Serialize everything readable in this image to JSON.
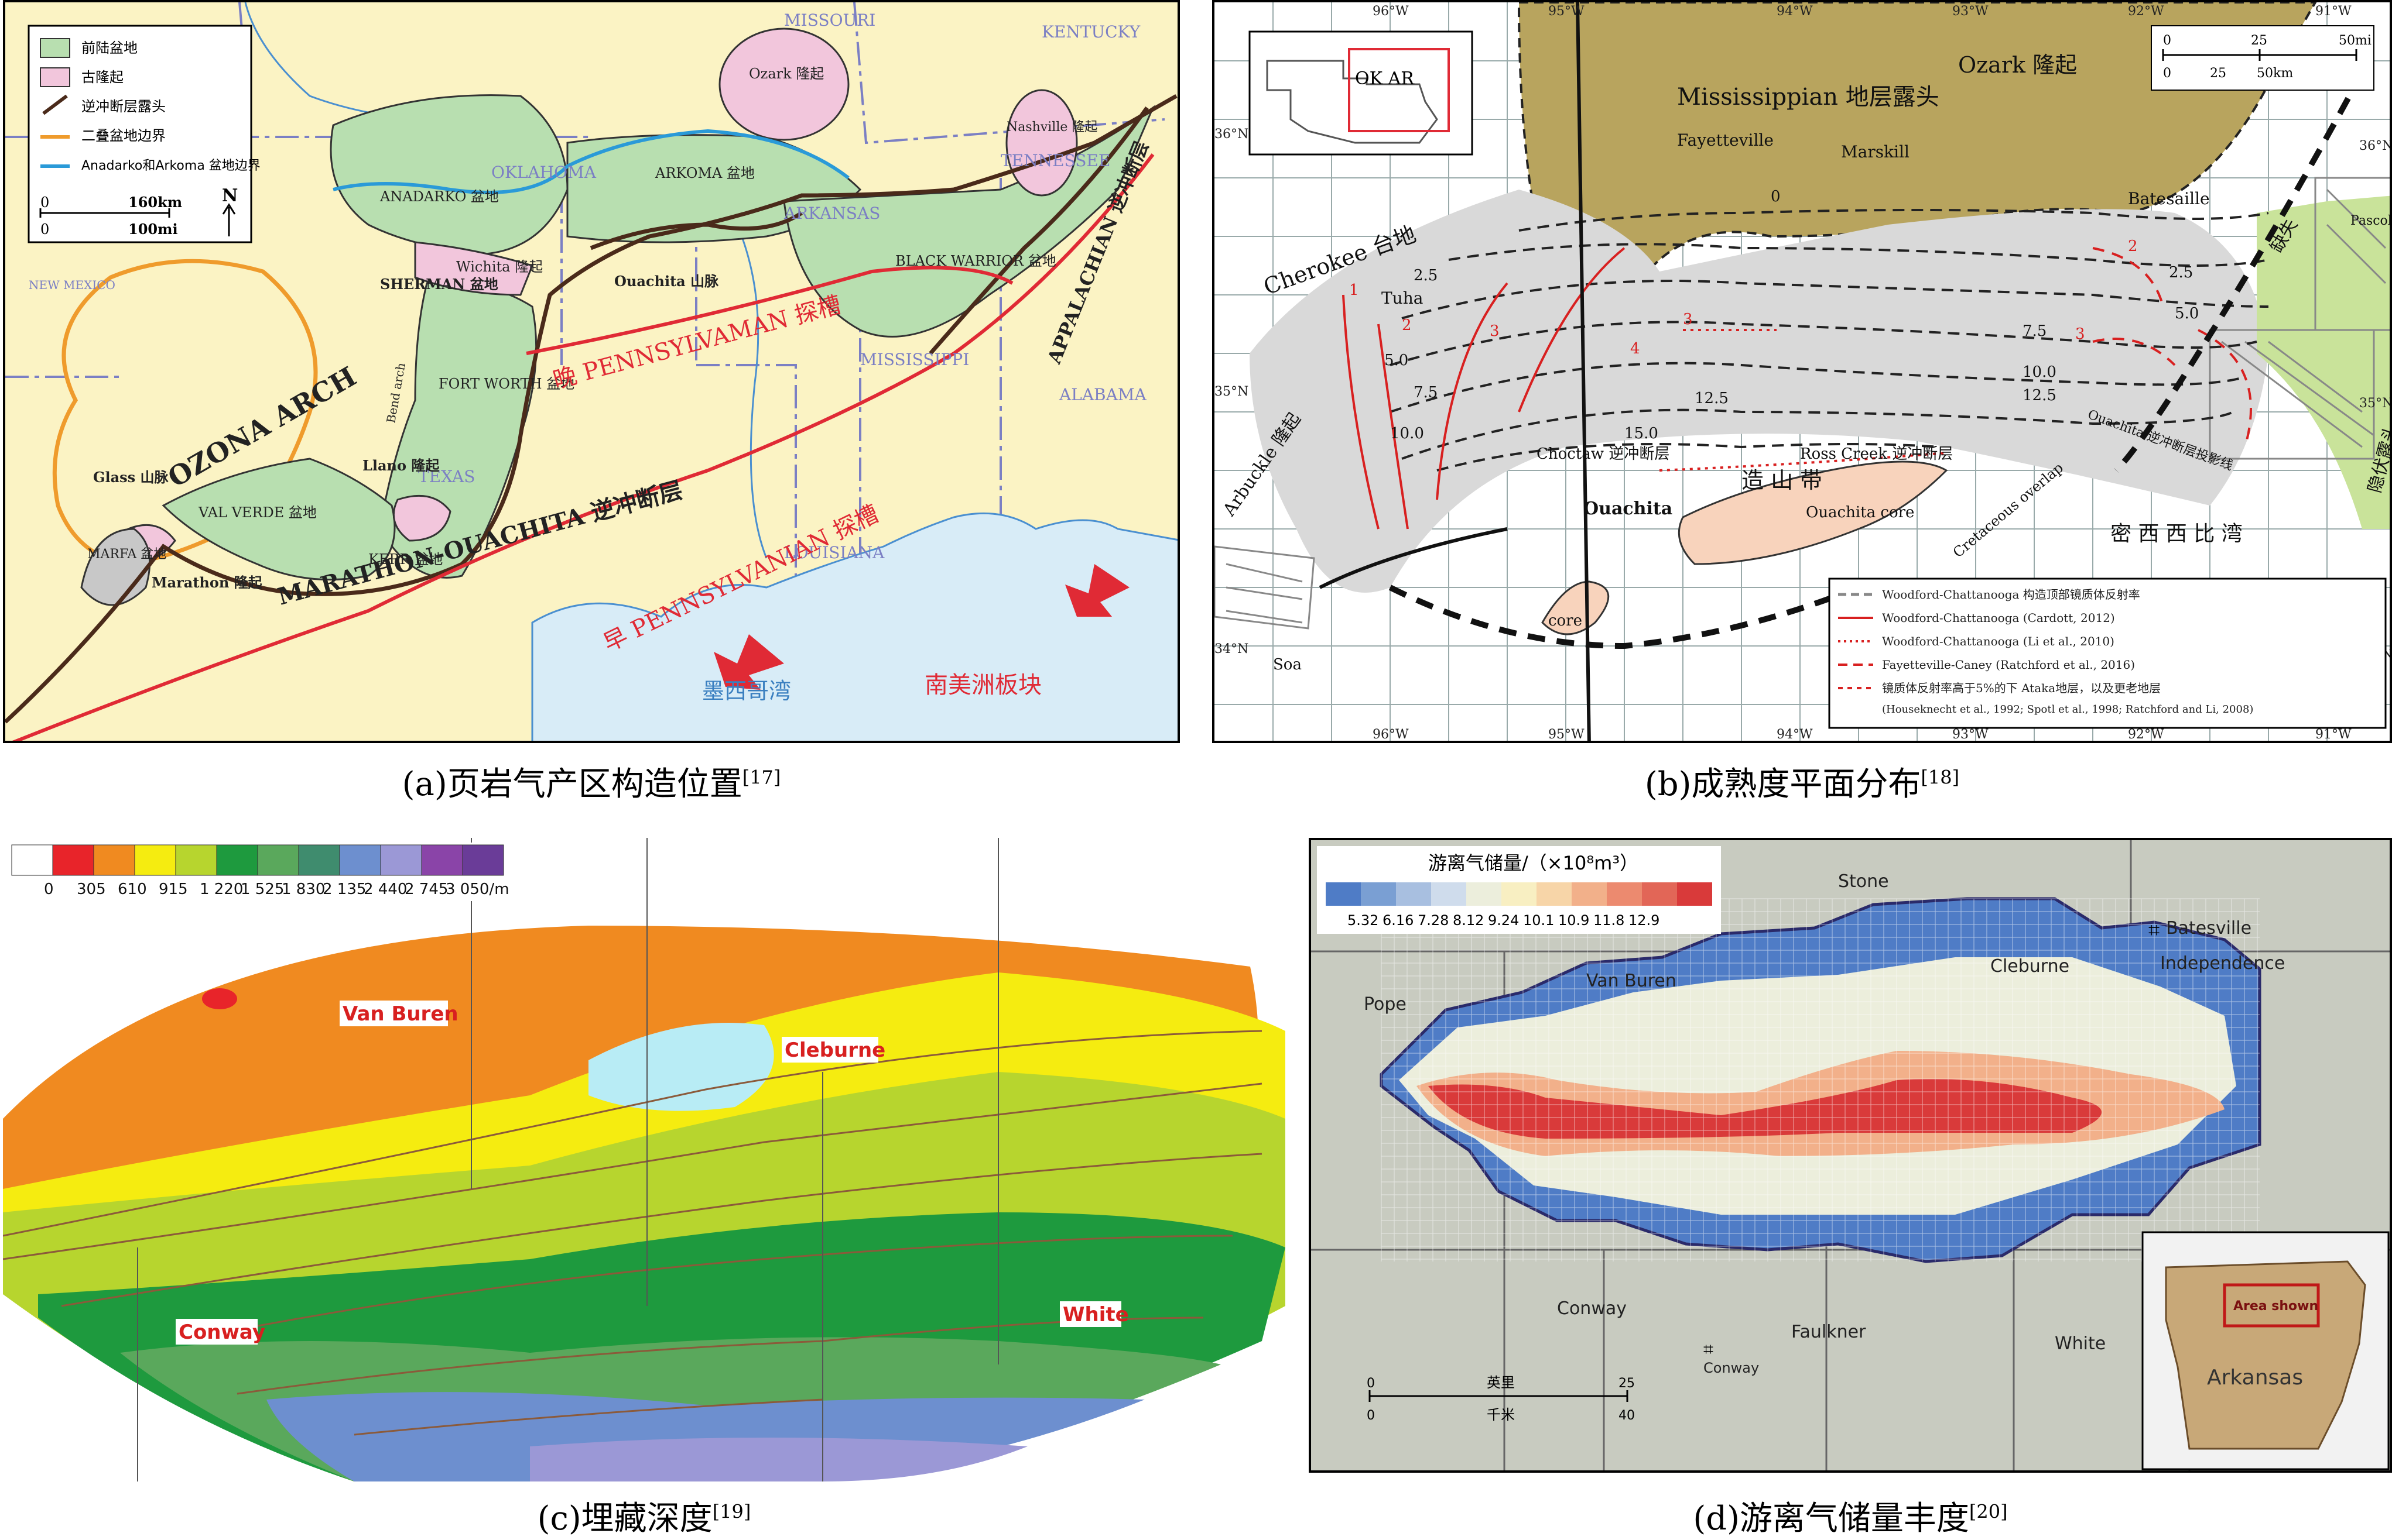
{
  "captions": {
    "a": "(a)页岩气产区构造位置",
    "a_ref": "[17]",
    "b": "(b)成熟度平面分布",
    "b_ref": "[18]",
    "c": "(c)埋藏深度",
    "c_ref": "[19]",
    "d": "(d)游离气储量丰度",
    "d_ref": "[20]"
  },
  "panel_a": {
    "legend": [
      "前陆盆地",
      "古隆起",
      "逆冲断层露头",
      "二叠盆地边界",
      "Anadarko和Arkoma 盆地边界"
    ],
    "scale_km": "160km",
    "scale_mi": "100mi",
    "scale_zero_km": "0",
    "scale_zero_mi": "0",
    "north": "N",
    "states": [
      "MISSOURI",
      "KENTUCKY",
      "OKLAHOMA",
      "ARKANSAS",
      "TENNESSEE",
      "MISSISSIPPI",
      "ALABAMA",
      "TEXAS",
      "LOUISIANA",
      "NEW MEXICO"
    ],
    "labels": {
      "ozark": "Ozark 隆起",
      "nashville": "Nashville 隆起",
      "anadarko": "ANADARKO 盆地",
      "arkoma": "ARKOMA 盆地",
      "black_warrior": "BLACK WARRIOR 盆地",
      "wichita": "Wichita 隆起",
      "sherman": "SHERMAN 盆地",
      "ouachita": "Ouachita 山脉",
      "fort_worth": "FORT WORTH 盆地",
      "bend_arch": "Bend arch",
      "llano": "Llano 隆起",
      "glass": "Glass 山脉",
      "val_verde": "VAL VERDE 盆地",
      "kerr": "KERR 盆地",
      "marfa": "MARFA 盆地",
      "marathon": "Marathon 隆起",
      "ozona": "OZONA ARCH",
      "marathon_ouachita": "MARATHON-OUACHITA 逆冲断层",
      "appalachian": "APPALACHIAN 逆冲断层",
      "late_penn": "晚 PENNSYLVAMAN 探槽",
      "early_penn": "早 PENNSYLVANIAN 探槽",
      "gulf": "墨西哥湾",
      "plate": "南美洲板块"
    }
  },
  "panel_b": {
    "inset": "OK  AR",
    "lon_top": [
      "96°W",
      "95°W",
      "94°W",
      "93°W",
      "92°W",
      "91°W"
    ],
    "lon_bottom": [
      "96°W",
      "95°W",
      "94°W",
      "93°W",
      "92°W",
      "91°W"
    ],
    "lat_left": [
      "36°N",
      "35°N",
      "34°N"
    ],
    "lat_right": [
      "36°N",
      "35°N",
      "34°N"
    ],
    "scale": [
      "0",
      "25",
      "50mi",
      "0",
      "25",
      "50km"
    ],
    "labels": {
      "ozark": "Ozark 隆起",
      "mississippian": "Mississippian 地层露头",
      "fayetteville": "Fayetteville",
      "marskill": "Marskill",
      "batesaille": "Batesaille",
      "cherokee": "Cherokee 台地",
      "tuha": "Tuha",
      "choctaw": "Choctaw 逆冲断层",
      "ross_creek": "Ross Creek 逆冲断层",
      "belt": "造  山  带",
      "ouachita": "Ouachita",
      "ouachita_core": "Ouachita core",
      "core": "core",
      "cretaceous": "Cretaceous overlap",
      "mississippi_bay": "密 西 西 比 湾",
      "ouachita_proj": "Ouachita 逆冲断层投影线",
      "arbuckle": "Arbuckle 隆起",
      "soa": "Soa",
      "gap": "缺失",
      "pascola": "Pascola arch",
      "hidden": "隐伏露头"
    },
    "contours": [
      "0",
      "2.5",
      "5.0",
      "7.5",
      "10.0",
      "12.5",
      "15.0",
      "2.5",
      "5.0",
      "7.5",
      "10.0",
      "12.5"
    ],
    "red_labels": [
      "1",
      "2",
      "3",
      "4",
      "3",
      "2",
      "3"
    ],
    "legend": [
      "Woodford-Chattanooga 构造顶部镜质体反射率",
      "Woodford-Chattanooga (Cardott, 2012)",
      "Woodford-Chattanooga (Li et al., 2010)",
      "Fayetteville-Caney (Ratchford et al., 2016)",
      "镜质体反射率高于5%的下 Ataka地层，以及更老地层",
      "(Houseknecht  et al., 1992; Spotl et al., 1998; Ratchford and  Li, 2008)"
    ]
  },
  "panel_c": {
    "depth_colors": [
      "#ffffff",
      "#e8242a",
      "#f08a20",
      "#f5ec10",
      "#b7d52e",
      "#1e9a3e",
      "#5aa85c",
      "#3f8c6e",
      "#6d8fcf",
      "#9b98d6",
      "#8a44a8",
      "#6a3c98"
    ],
    "depth_ticks": [
      "0",
      "305",
      "610",
      "915",
      "1 220",
      "1 525",
      "1 830",
      "2 135",
      "2 440",
      "2 745",
      "3 050/m"
    ],
    "labels": {
      "van_buren": "Van Buren",
      "cleburne": "Cleburne",
      "conway": "Conway",
      "white": "White"
    }
  },
  "panel_d": {
    "legend_title": "游离气储量/（×10⁸m³）",
    "legend_colors": [
      "#4f7cc6",
      "#7a9fd3",
      "#a8bfe0",
      "#cfdcec",
      "#eceedc",
      "#f8efc2",
      "#f7d5a8",
      "#f2b08a",
      "#ec8a6f",
      "#e26657",
      "#d93a3a"
    ],
    "legend_ticks": [
      "5.32",
      "6.16",
      "7.28",
      "8.12",
      "9.24",
      "10.1",
      "10.9",
      "11.8",
      "12.9"
    ],
    "counties": {
      "stone": "Stone",
      "batesville": "Batesville",
      "pope": "Pope",
      "van_buren": "Van Buren",
      "cleburne": "Cleburne",
      "independence": "Independence",
      "conway": "Conway",
      "faulkner": "Faulkner",
      "white": "White",
      "conway_city": "Conway"
    },
    "scale_mi_label": "英里",
    "scale_km_label": "千米",
    "scale_ticks": [
      "0",
      "25",
      "0",
      "40"
    ],
    "inset_area": "Area shown",
    "inset_state": "Arkansas"
  }
}
